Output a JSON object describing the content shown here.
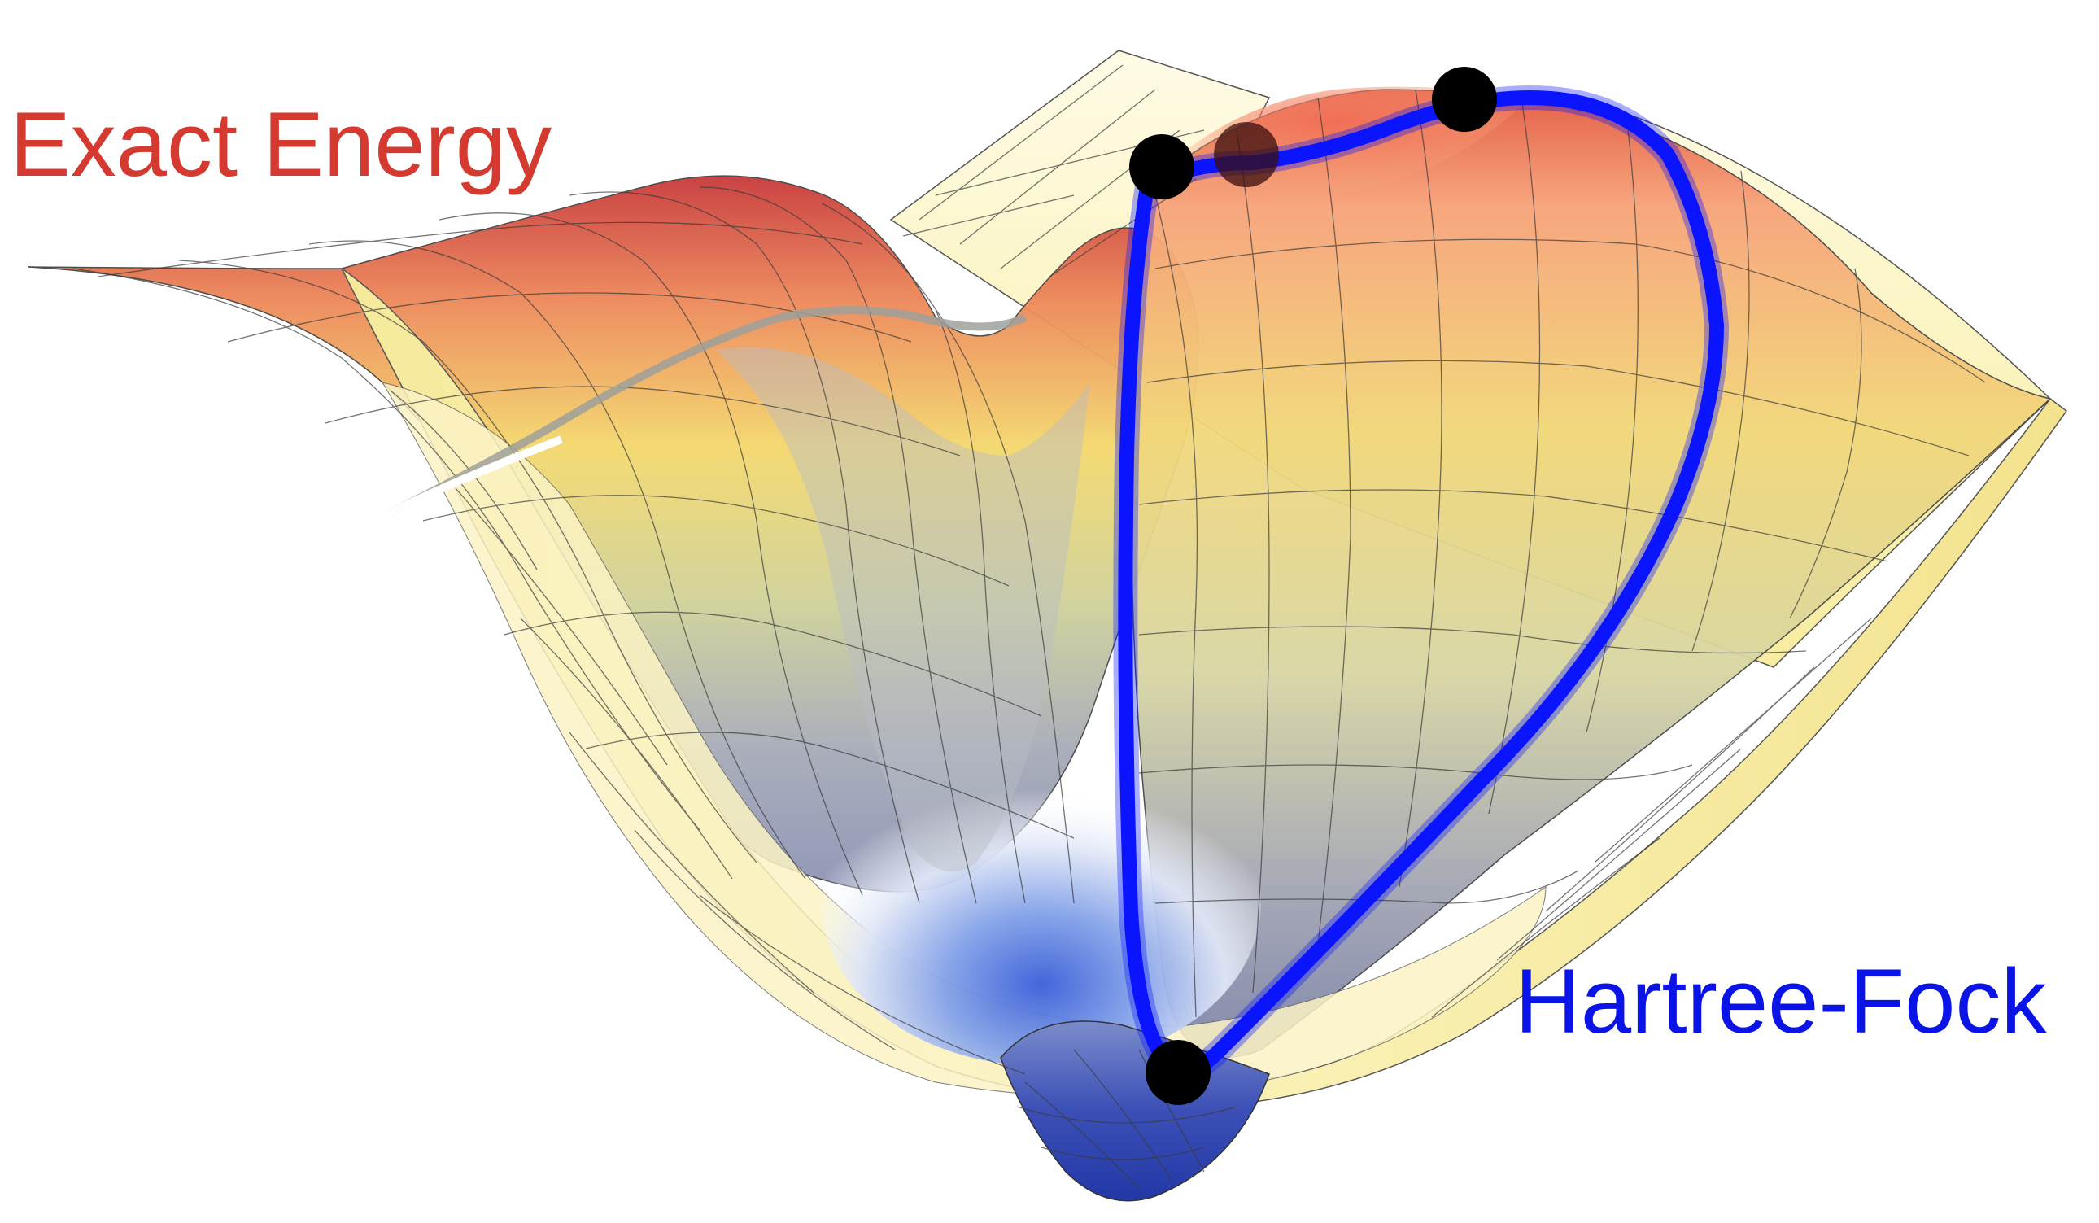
{
  "labels": {
    "exact_energy": "Exact Energy",
    "hartree_fock": "Hartree-Fock"
  },
  "colors": {
    "exact_energy_text": "#d43a2f",
    "hartree_fock_text": "#0a14e6",
    "hartree_fock_path": "#0a14ff",
    "critical_point": "#000000",
    "surface_low": "#3f5fd6",
    "surface_mid": "#f6ee86",
    "surface_high": "#d8483a",
    "grid_line": "#3a3a3a"
  },
  "critical_points": [
    "hf-minimum",
    "hf-saddle-left",
    "hf-saddle-middle",
    "hf-saddle-right"
  ]
}
